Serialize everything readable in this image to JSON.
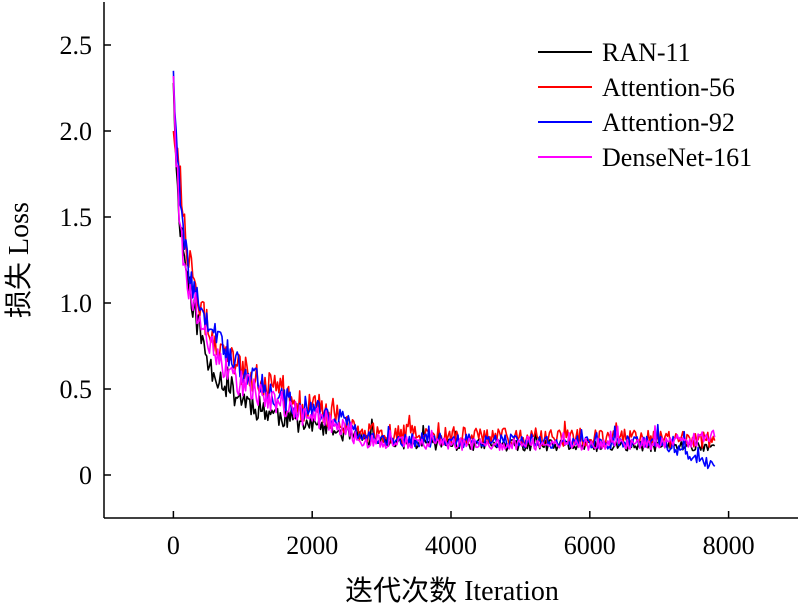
{
  "chart_data": {
    "type": "line",
    "xlabel": "迭代次数 Iteration",
    "ylabel": "损失 Loss",
    "xlim": [
      -1000,
      9000
    ],
    "ylim": [
      -0.25,
      2.75
    ],
    "xticks": [
      0,
      2000,
      4000,
      6000,
      8000
    ],
    "xtick_labels": [
      "0",
      "2000",
      "4000",
      "6000",
      "8000"
    ],
    "yticks": [
      0,
      0.5,
      1.0,
      1.5,
      2.0,
      2.5
    ],
    "ytick_labels": [
      "0",
      "0.5",
      "1.0",
      "1.5",
      "2.0",
      "2.5"
    ],
    "grid": false,
    "legend_position": "top-right",
    "series": [
      {
        "name": "RAN-11",
        "color": "#000000",
        "seed": 11,
        "amp": 0.05,
        "x": [
          0,
          50,
          100,
          200,
          300,
          400,
          500,
          700,
          900,
          1100,
          1300,
          1500,
          1800,
          2100,
          2400,
          2700,
          3200,
          4000,
          5000,
          6000,
          7000,
          7800
        ],
        "y": [
          2.28,
          1.7,
          1.45,
          1.15,
          0.95,
          0.8,
          0.65,
          0.55,
          0.47,
          0.42,
          0.38,
          0.35,
          0.31,
          0.28,
          0.25,
          0.21,
          0.19,
          0.18,
          0.17,
          0.17,
          0.17,
          0.17
        ]
      },
      {
        "name": "Attention-56",
        "color": "#ff0000",
        "seed": 56,
        "amp": 0.06,
        "x": [
          0,
          50,
          100,
          200,
          300,
          400,
          500,
          700,
          900,
          1100,
          1300,
          1500,
          1800,
          2100,
          2400,
          2700,
          3200,
          4000,
          5000,
          6000,
          7000,
          7800
        ],
        "y": [
          2.0,
          1.9,
          1.7,
          1.3,
          1.1,
          0.95,
          0.85,
          0.72,
          0.65,
          0.58,
          0.52,
          0.48,
          0.42,
          0.38,
          0.33,
          0.25,
          0.24,
          0.23,
          0.22,
          0.22,
          0.21,
          0.2
        ]
      },
      {
        "name": "Attention-92",
        "color": "#0000ff",
        "seed": 92,
        "amp": 0.05,
        "x": [
          0,
          50,
          100,
          200,
          300,
          400,
          500,
          700,
          900,
          1100,
          1300,
          1500,
          1800,
          2100,
          2400,
          2700,
          3200,
          4000,
          5000,
          6000,
          7000,
          7800
        ],
        "y": [
          2.35,
          1.85,
          1.6,
          1.25,
          1.05,
          0.95,
          0.9,
          0.75,
          0.65,
          0.58,
          0.52,
          0.46,
          0.4,
          0.36,
          0.33,
          0.22,
          0.21,
          0.2,
          0.2,
          0.19,
          0.19,
          0.05
        ]
      },
      {
        "name": "DenseNet-161",
        "color": "#ff00ff",
        "seed": 161,
        "amp": 0.05,
        "x": [
          0,
          50,
          100,
          200,
          300,
          400,
          500,
          700,
          900,
          1100,
          1300,
          1500,
          1800,
          2100,
          2400,
          2700,
          3200,
          4000,
          5000,
          6000,
          7000,
          7800
        ],
        "y": [
          2.32,
          1.75,
          1.4,
          1.1,
          1.0,
          0.9,
          0.8,
          0.65,
          0.55,
          0.5,
          0.45,
          0.42,
          0.37,
          0.33,
          0.28,
          0.2,
          0.19,
          0.18,
          0.18,
          0.18,
          0.18,
          0.22
        ]
      }
    ]
  }
}
